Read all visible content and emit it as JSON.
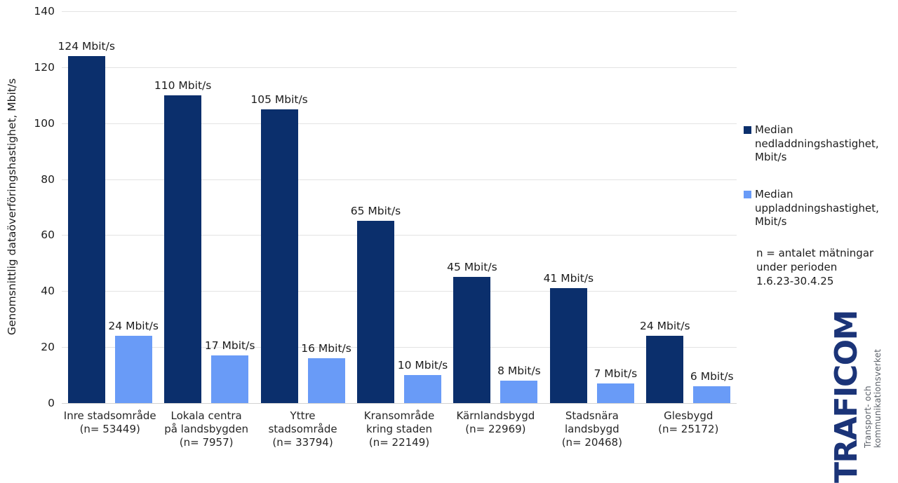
{
  "chart_data": {
    "type": "bar",
    "title": "",
    "ylabel": "Genomsnittlig dataöverföringshastighet, Mbit/s",
    "xlabel": "",
    "ylim": [
      0,
      140
    ],
    "yticks": [
      0,
      20,
      40,
      60,
      80,
      100,
      120,
      140
    ],
    "grid": true,
    "legend_position": "right",
    "bar_label_format": "{v} Mbit/s",
    "categories": [
      "Inre stadsområde\n(n= 53449)",
      "Lokala centra\npå landsbygden\n(n= 7957)",
      "Yttre\nstadsområde\n(n= 33794)",
      "Kransområde\nkring staden\n(n= 22149)",
      "Kärnlandsbygd\n(n= 22969)",
      "Stadsnära\nlandsbygd\n(n= 20468)",
      "Glesbygd\n(n= 25172)"
    ],
    "series": [
      {
        "name": "Median nedladdningshastighet, Mbit/s",
        "key": "download",
        "color": "#0b2f6c",
        "values": [
          124,
          110,
          105,
          65,
          45,
          41,
          24
        ]
      },
      {
        "name": "Median uppladdningshastighet, Mbit/s",
        "key": "upload",
        "color": "#699bf7",
        "values": [
          24,
          17,
          16,
          10,
          8,
          7,
          6
        ]
      }
    ]
  },
  "legend": {
    "download_label": "Median\nnedladdningshastighet,\nMbit/s",
    "upload_label": "Median\nuppladdningshastighet,\nMbit/s",
    "note": "n = antalet mätningar\nunder perioden\n1.6.23-30.4.25"
  },
  "logo": {
    "wordmark": "TRAFICOM",
    "subtitle": "Transport- och kommunikationsverket",
    "brand_color": "#1b3478"
  }
}
